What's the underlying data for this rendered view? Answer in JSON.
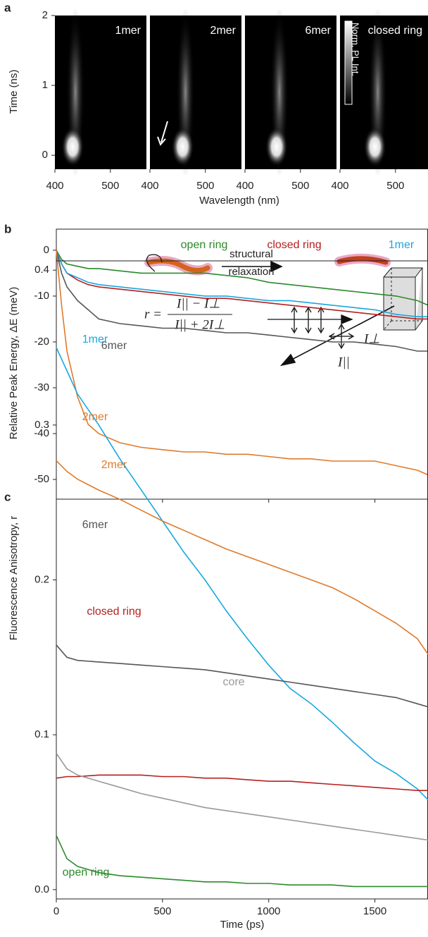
{
  "chart_data": [
    {
      "type": "heatmap",
      "panel_label": "a",
      "y_label": "Time (ns)",
      "x_label": "Wavelength (nm)",
      "colorbar_label": "Norm. PL Int.",
      "ylim": [
        -0.2,
        2
      ],
      "yticks": [
        0,
        1,
        2
      ],
      "xlim": [
        400,
        565
      ],
      "xticks": [
        400,
        500
      ],
      "series": [
        {
          "name": "1mer",
          "peak_wavelength": 432
        },
        {
          "name": "2mer",
          "peak_wavelength": 459
        },
        {
          "name": "6mer",
          "peak_wavelength": 457
        },
        {
          "name": "closed ring",
          "peak_wavelength": 463
        }
      ]
    },
    {
      "type": "line",
      "panel_label": "b",
      "y_label": "Relative Peak Energy, ΔE (meV)",
      "annotations": [
        "structural",
        "relaxation"
      ],
      "xlim": [
        0,
        1750
      ],
      "ylim": [
        -54.3,
        4.6
      ],
      "yticks": [
        0,
        -10,
        -20,
        -30,
        -40,
        -50
      ],
      "x": [
        0,
        25,
        50,
        100,
        150,
        200,
        300,
        400,
        500,
        600,
        700,
        800,
        900,
        1000,
        1100,
        1200,
        1300,
        1400,
        1500,
        1600,
        1700,
        1750
      ],
      "series": [
        {
          "name": "open ring",
          "color": "#2b8a2b",
          "values": [
            0,
            -2,
            -3,
            -3.5,
            -4,
            -4,
            -4.5,
            -5,
            -5,
            -5,
            -5,
            -5.5,
            -6,
            -7,
            -7.5,
            -8,
            -8.5,
            -9,
            -9.5,
            -10,
            -11,
            -12
          ]
        },
        {
          "name": "closed ring",
          "color": "#b5201f",
          "values": [
            0,
            -3,
            -5,
            -6.5,
            -7.5,
            -8,
            -8.5,
            -9,
            -9.5,
            -10,
            -10.5,
            -10.5,
            -11,
            -11.5,
            -12,
            -12.5,
            -13,
            -13.5,
            -14,
            -14.5,
            -15,
            -15
          ]
        },
        {
          "name": "1mer",
          "color": "#1aa7e0",
          "values": [
            0,
            -3,
            -5,
            -6,
            -7,
            -7.5,
            -8,
            -8.5,
            -9,
            -9.5,
            -10,
            -10,
            -10.5,
            -11,
            -11,
            -11.5,
            -12,
            -12.5,
            -13,
            -14,
            -14.5,
            -14.5
          ]
        },
        {
          "name": "6mer",
          "color": "#555555",
          "values": [
            0,
            -5,
            -8,
            -11,
            -13,
            -15,
            -16,
            -16.5,
            -17,
            -17,
            -17.5,
            -18,
            -18,
            -18.5,
            -19,
            -19.5,
            -20,
            -20,
            -20.5,
            -21,
            -22,
            -22
          ]
        },
        {
          "name": "2mer",
          "color": "#e07a2a",
          "values": [
            0,
            -12,
            -22,
            -32,
            -38,
            -40,
            -42,
            -43,
            -43.5,
            -44,
            -44,
            -44.5,
            -44.5,
            -45,
            -45.5,
            -45.5,
            -46,
            -46,
            -46,
            -47,
            -48,
            -49
          ]
        }
      ]
    },
    {
      "type": "line",
      "panel_label": "c",
      "y_label": "Fluorescence Anisotropy, r",
      "x_label": "Time (ps)",
      "annotations": [
        "r =",
        "I|| − I⊥",
        "I|| + 2I⊥",
        "I⊥",
        "I||"
      ],
      "xlim": [
        0,
        1750
      ],
      "xticks": [
        0,
        500,
        1000,
        1500
      ],
      "ylim": [
        -0.006,
        0.406
      ],
      "yticks": [
        {
          "value": 0,
          "label": "0.0"
        },
        0.1,
        0.2,
        0.3,
        0.4
      ],
      "x": [
        0,
        50,
        100,
        200,
        300,
        400,
        500,
        600,
        700,
        800,
        900,
        1000,
        1100,
        1200,
        1300,
        1400,
        1500,
        1600,
        1700,
        1750
      ],
      "series": [
        {
          "name": "1mer",
          "color": "#1aa7e0",
          "values": [
            0.35,
            0.335,
            0.32,
            0.3,
            0.278,
            0.258,
            0.238,
            0.218,
            0.2,
            0.18,
            0.162,
            0.145,
            0.13,
            0.12,
            0.108,
            0.095,
            0.083,
            0.075,
            0.065,
            0.058
          ]
        },
        {
          "name": "2mer",
          "color": "#e07a2a",
          "values": [
            0.277,
            0.27,
            0.265,
            0.258,
            0.252,
            0.245,
            0.238,
            0.232,
            0.226,
            0.22,
            0.215,
            0.21,
            0.205,
            0.2,
            0.195,
            0.188,
            0.18,
            0.172,
            0.162,
            0.152
          ]
        },
        {
          "name": "6mer",
          "color": "#555555",
          "values": [
            0.158,
            0.15,
            0.148,
            0.147,
            0.146,
            0.145,
            0.144,
            0.143,
            0.142,
            0.14,
            0.138,
            0.136,
            0.134,
            0.132,
            0.13,
            0.128,
            0.126,
            0.124,
            0.12,
            0.118
          ]
        },
        {
          "name": "closed ring",
          "color": "#b5201f",
          "values": [
            0.072,
            0.073,
            0.073,
            0.074,
            0.074,
            0.074,
            0.073,
            0.073,
            0.072,
            0.072,
            0.071,
            0.07,
            0.07,
            0.069,
            0.068,
            0.067,
            0.066,
            0.065,
            0.064,
            0.064
          ]
        },
        {
          "name": "core",
          "color": "#999999",
          "values": [
            0.088,
            0.078,
            0.074,
            0.07,
            0.066,
            0.062,
            0.059,
            0.056,
            0.053,
            0.051,
            0.049,
            0.047,
            0.045,
            0.043,
            0.041,
            0.039,
            0.037,
            0.035,
            0.033,
            0.032
          ]
        },
        {
          "name": "open ring",
          "color": "#2b8a2b",
          "values": [
            0.035,
            0.02,
            0.015,
            0.011,
            0.009,
            0.008,
            0.007,
            0.006,
            0.005,
            0.005,
            0.004,
            0.004,
            0.003,
            0.003,
            0.003,
            0.002,
            0.002,
            0.002,
            0.002,
            0.002
          ]
        }
      ]
    }
  ]
}
